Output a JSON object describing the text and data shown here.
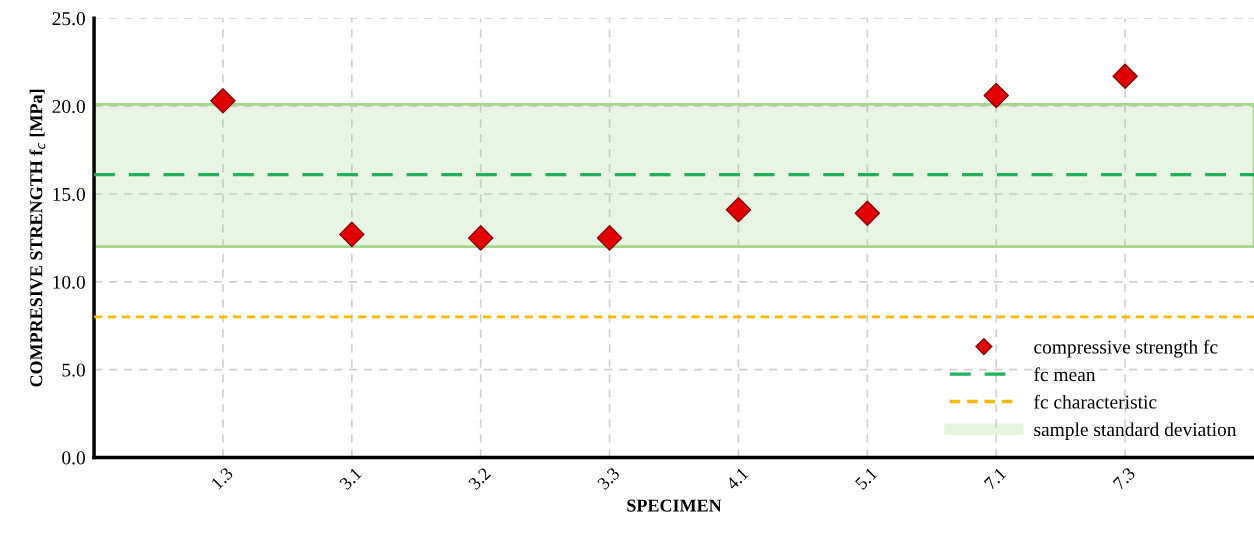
{
  "chart_data": {
    "type": "scatter",
    "xlabel": "SPECIMEN",
    "ylabel": "COMPRESIVE STRENGTH f$_{c}$ [MPa]",
    "categories": [
      "1.3",
      "3.1",
      "3.2",
      "3.3",
      "4.1",
      "5.1",
      "7.1",
      "7.3"
    ],
    "series": [
      {
        "name": "compressive strength fc",
        "color": "#e00000",
        "values": [
          20.3,
          12.7,
          12.5,
          12.5,
          14.1,
          13.9,
          20.6,
          21.7
        ]
      }
    ],
    "marker": "diamond",
    "ylim": [
      0,
      25
    ],
    "yticks": [
      {
        "value": 0,
        "label": "0.0"
      },
      {
        "value": 5,
        "label": "5.0"
      },
      {
        "value": 10,
        "label": "10.0"
      },
      {
        "value": 15,
        "label": "15.0"
      },
      {
        "value": 20,
        "label": "20.0"
      },
      {
        "value": 25,
        "label": "25.0"
      }
    ],
    "ref_lines": [
      {
        "axis": "y",
        "value": 16.1,
        "label": "fc mean",
        "color": "#22b05a",
        "line_style": "dashed"
      },
      {
        "axis": "y",
        "value": 8.0,
        "label": "fc characteristic",
        "color": "#ffb800",
        "line_style": "dotted"
      }
    ],
    "bands": [
      {
        "axis": "y",
        "from": 12.0,
        "to": 20.1,
        "label": "sample standard deviation",
        "color": "#a5d68a"
      }
    ],
    "grid": true,
    "legend": "bottom right"
  }
}
